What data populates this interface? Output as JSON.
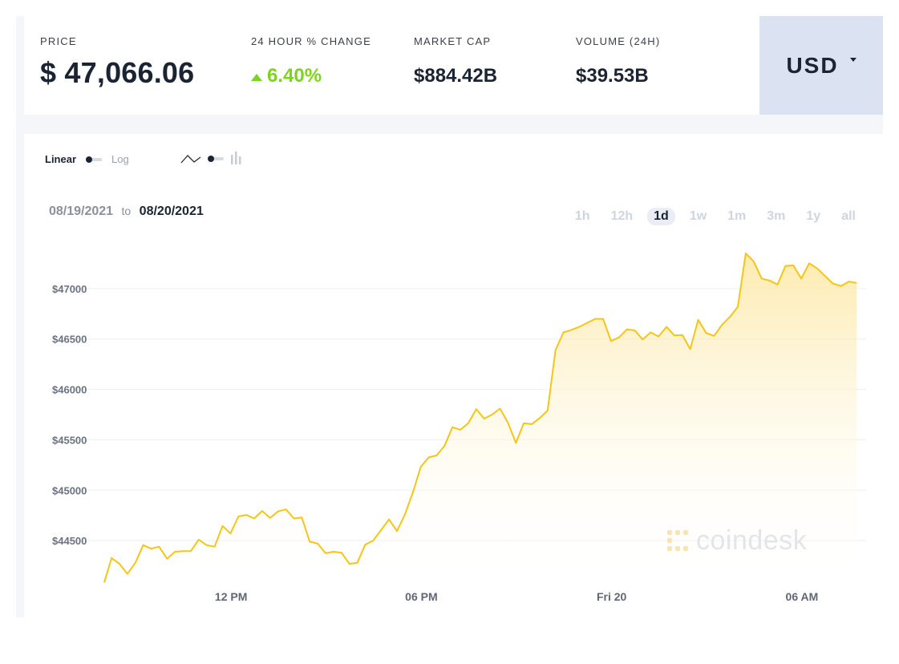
{
  "stats": {
    "price_label": "PRICE",
    "price_value": "$ 47,066.06",
    "change_label": "24 HOUR % CHANGE",
    "change_value": "6.40%",
    "marketcap_label": "MARKET CAP",
    "marketcap_value": "$884.42B",
    "volume_label": "VOLUME (24H)",
    "volume_value": "$39.53B"
  },
  "currency": {
    "selected": "USD"
  },
  "controls": {
    "scale_linear": "Linear",
    "scale_log": "Log",
    "chart_type_icons": [
      "line-chart-icon",
      "bar-chart-icon"
    ]
  },
  "date_range": {
    "from": "08/19/2021",
    "separator": "to",
    "to": "08/20/2021"
  },
  "ranges": [
    "1h",
    "12h",
    "1d",
    "1w",
    "1m",
    "3m",
    "1y",
    "all"
  ],
  "active_range": "1d",
  "brand": {
    "text": "coindesk"
  },
  "colors": {
    "line": "#f5c518",
    "fill_top": "#fdeaa8",
    "change_up": "#7ed321",
    "currency_bg": "#dbe2f1"
  },
  "chart_data": {
    "type": "area",
    "y_ticks": [
      44500,
      45000,
      45500,
      46000,
      46500,
      47000
    ],
    "y_tick_labels": [
      "$44500",
      "$45000",
      "$45500",
      "$46000",
      "$46500",
      "$47000"
    ],
    "ylim": [
      44000,
      47500
    ],
    "x_range": [
      0,
      24
    ],
    "x_ticks": [
      {
        "x": 4.0,
        "label": "12 PM"
      },
      {
        "x": 10.0,
        "label": "06 PM"
      },
      {
        "x": 16.0,
        "label": "Fri 20"
      },
      {
        "x": 22.0,
        "label": "06 AM"
      }
    ],
    "grid": true,
    "series": [
      {
        "values": [
          [
            0.0,
            44085
          ],
          [
            0.23,
            44327
          ],
          [
            0.48,
            44270
          ],
          [
            0.73,
            44170
          ],
          [
            0.98,
            44280
          ],
          [
            1.23,
            44455
          ],
          [
            1.48,
            44420
          ],
          [
            1.73,
            44440
          ],
          [
            1.98,
            44320
          ],
          [
            2.23,
            44390
          ],
          [
            2.48,
            44395
          ],
          [
            2.73,
            44395
          ],
          [
            2.98,
            44510
          ],
          [
            3.23,
            44455
          ],
          [
            3.48,
            44440
          ],
          [
            3.73,
            44645
          ],
          [
            3.98,
            44570
          ],
          [
            4.23,
            44740
          ],
          [
            4.48,
            44755
          ],
          [
            4.73,
            44720
          ],
          [
            4.98,
            44795
          ],
          [
            5.23,
            44725
          ],
          [
            5.48,
            44790
          ],
          [
            5.73,
            44810
          ],
          [
            5.98,
            44720
          ],
          [
            6.23,
            44730
          ],
          [
            6.48,
            44490
          ],
          [
            6.73,
            44470
          ],
          [
            6.98,
            44375
          ],
          [
            7.23,
            44390
          ],
          [
            7.48,
            44380
          ],
          [
            7.73,
            44270
          ],
          [
            7.98,
            44280
          ],
          [
            8.23,
            44460
          ],
          [
            8.48,
            44500
          ],
          [
            8.73,
            44605
          ],
          [
            8.98,
            44710
          ],
          [
            9.23,
            44595
          ],
          [
            9.48,
            44760
          ],
          [
            9.73,
            44975
          ],
          [
            9.98,
            45230
          ],
          [
            10.23,
            45325
          ],
          [
            10.48,
            45345
          ],
          [
            10.73,
            45440
          ],
          [
            10.98,
            45625
          ],
          [
            11.23,
            45600
          ],
          [
            11.48,
            45665
          ],
          [
            11.73,
            45805
          ],
          [
            11.98,
            45710
          ],
          [
            12.23,
            45750
          ],
          [
            12.48,
            45810
          ],
          [
            12.73,
            45670
          ],
          [
            12.98,
            45470
          ],
          [
            13.23,
            45665
          ],
          [
            13.48,
            45655
          ],
          [
            13.73,
            45715
          ],
          [
            13.98,
            45790
          ],
          [
            14.23,
            46390
          ],
          [
            14.48,
            46565
          ],
          [
            14.73,
            46590
          ],
          [
            14.98,
            46620
          ],
          [
            15.23,
            46660
          ],
          [
            15.48,
            46700
          ],
          [
            15.73,
            46700
          ],
          [
            15.98,
            46480
          ],
          [
            16.23,
            46515
          ],
          [
            16.48,
            46595
          ],
          [
            16.73,
            46585
          ],
          [
            16.98,
            46495
          ],
          [
            17.23,
            46565
          ],
          [
            17.48,
            46525
          ],
          [
            17.73,
            46620
          ],
          [
            17.98,
            46535
          ],
          [
            18.23,
            46540
          ],
          [
            18.48,
            46400
          ],
          [
            18.73,
            46690
          ],
          [
            18.98,
            46560
          ],
          [
            19.23,
            46530
          ],
          [
            19.48,
            46640
          ],
          [
            19.73,
            46720
          ],
          [
            19.98,
            46820
          ],
          [
            20.23,
            47350
          ],
          [
            20.48,
            47270
          ],
          [
            20.73,
            47100
          ],
          [
            20.98,
            47080
          ],
          [
            21.23,
            47040
          ],
          [
            21.48,
            47225
          ],
          [
            21.73,
            47230
          ],
          [
            21.98,
            47100
          ],
          [
            22.23,
            47250
          ],
          [
            22.48,
            47200
          ],
          [
            22.73,
            47125
          ],
          [
            22.98,
            47050
          ],
          [
            23.23,
            47025
          ],
          [
            23.48,
            47070
          ],
          [
            23.73,
            47055
          ]
        ]
      }
    ]
  }
}
